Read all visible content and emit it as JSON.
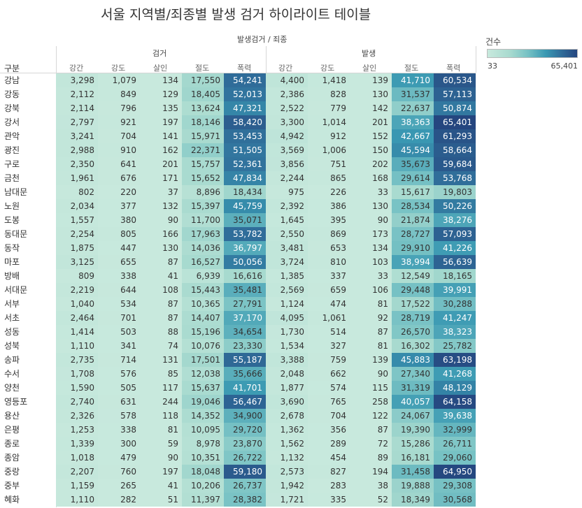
{
  "title": "서울 지역별/죄종별 발생 검거 하이라이트 테이블",
  "header": {
    "column_group_title": "발생검거 / 죄종",
    "row_header": "구분",
    "groups": [
      "검거",
      "발생"
    ],
    "crimes": [
      "강간",
      "강도",
      "살인",
      "절도",
      "폭력"
    ]
  },
  "legend": {
    "title": "건수",
    "min_label": "33",
    "max_label": "65,401",
    "color_low": "#c8e9dd",
    "color_high": "#25467f"
  },
  "chart_data": {
    "type": "heatmap",
    "title": "서울 지역별/죄종별 발생 검거 하이라이트 테이블",
    "row_header": "구분",
    "column_groups": [
      "검거",
      "발생"
    ],
    "crime_types": [
      "강간",
      "강도",
      "살인",
      "절도",
      "폭력"
    ],
    "color_range": [
      33,
      65401
    ],
    "rows": [
      {
        "region": "강남",
        "values": [
          3298,
          1079,
          134,
          17550,
          54241,
          4400,
          1418,
          139,
          41710,
          60534
        ]
      },
      {
        "region": "강동",
        "values": [
          2112,
          849,
          129,
          18405,
          52013,
          2386,
          828,
          130,
          31537,
          57113
        ]
      },
      {
        "region": "강북",
        "values": [
          2114,
          796,
          135,
          13624,
          47321,
          2522,
          779,
          142,
          22637,
          50874
        ]
      },
      {
        "region": "강서",
        "values": [
          2797,
          921,
          197,
          18146,
          58420,
          3300,
          1014,
          201,
          38363,
          65401
        ]
      },
      {
        "region": "관악",
        "values": [
          3241,
          704,
          141,
          15971,
          53453,
          4942,
          912,
          152,
          42667,
          61293
        ]
      },
      {
        "region": "광진",
        "values": [
          2988,
          910,
          162,
          22371,
          51505,
          3569,
          1006,
          150,
          45594,
          58664
        ]
      },
      {
        "region": "구로",
        "values": [
          2350,
          641,
          201,
          15757,
          52361,
          3856,
          751,
          202,
          35673,
          59684
        ]
      },
      {
        "region": "금천",
        "values": [
          1961,
          676,
          171,
          15652,
          47834,
          2244,
          865,
          168,
          29614,
          53768
        ]
      },
      {
        "region": "남대문",
        "values": [
          802,
          220,
          37,
          8896,
          18434,
          975,
          226,
          33,
          15617,
          19803
        ]
      },
      {
        "region": "노원",
        "values": [
          2034,
          377,
          132,
          15397,
          45759,
          2392,
          386,
          130,
          28534,
          50226
        ]
      },
      {
        "region": "도봉",
        "values": [
          1557,
          380,
          90,
          11700,
          35071,
          1645,
          395,
          90,
          21874,
          38276
        ]
      },
      {
        "region": "동대문",
        "values": [
          2254,
          805,
          166,
          17963,
          53782,
          2550,
          869,
          173,
          28727,
          57093
        ]
      },
      {
        "region": "동작",
        "values": [
          1875,
          447,
          130,
          14036,
          36797,
          3481,
          653,
          134,
          29910,
          41226
        ]
      },
      {
        "region": "마포",
        "values": [
          3125,
          655,
          87,
          16527,
          50056,
          3724,
          810,
          103,
          38994,
          56639
        ]
      },
      {
        "region": "방배",
        "values": [
          809,
          338,
          41,
          6939,
          16616,
          1385,
          337,
          33,
          12549,
          18165
        ]
      },
      {
        "region": "서대문",
        "values": [
          2219,
          644,
          108,
          15443,
          35481,
          2569,
          659,
          106,
          29448,
          39991
        ]
      },
      {
        "region": "서부",
        "values": [
          1040,
          534,
          87,
          10365,
          27791,
          1124,
          474,
          81,
          17522,
          30288
        ]
      },
      {
        "region": "서초",
        "values": [
          2464,
          701,
          87,
          14407,
          37170,
          4095,
          1061,
          92,
          28719,
          41247
        ]
      },
      {
        "region": "성동",
        "values": [
          1414,
          503,
          88,
          15196,
          34654,
          1730,
          514,
          87,
          26570,
          38323
        ]
      },
      {
        "region": "성북",
        "values": [
          1110,
          341,
          74,
          10076,
          23330,
          1534,
          327,
          81,
          16302,
          25782
        ]
      },
      {
        "region": "송파",
        "values": [
          2735,
          714,
          131,
          17501,
          55187,
          3388,
          759,
          139,
          45883,
          63198
        ]
      },
      {
        "region": "수서",
        "values": [
          1708,
          576,
          85,
          12038,
          35666,
          2048,
          662,
          90,
          27340,
          41268
        ]
      },
      {
        "region": "양천",
        "values": [
          1590,
          505,
          117,
          15637,
          41701,
          1877,
          574,
          115,
          31319,
          48129
        ]
      },
      {
        "region": "영등포",
        "values": [
          2740,
          631,
          244,
          19046,
          56467,
          3690,
          765,
          258,
          40057,
          64158
        ]
      },
      {
        "region": "용산",
        "values": [
          2326,
          578,
          118,
          14352,
          34900,
          2678,
          704,
          122,
          24067,
          39638
        ]
      },
      {
        "region": "은평",
        "values": [
          1253,
          338,
          81,
          10095,
          29720,
          1362,
          356,
          87,
          19390,
          32999
        ]
      },
      {
        "region": "종로",
        "values": [
          1339,
          300,
          59,
          8978,
          23870,
          1562,
          289,
          72,
          15286,
          26711
        ]
      },
      {
        "region": "종암",
        "values": [
          1018,
          479,
          90,
          10351,
          26722,
          1132,
          454,
          89,
          16181,
          29060
        ]
      },
      {
        "region": "중랑",
        "values": [
          2207,
          760,
          197,
          18048,
          59180,
          2573,
          827,
          194,
          31458,
          64950
        ]
      },
      {
        "region": "중부",
        "values": [
          1159,
          265,
          41,
          10206,
          26737,
          1942,
          283,
          38,
          19888,
          29308
        ]
      },
      {
        "region": "혜화",
        "values": [
          1110,
          282,
          51,
          11397,
          28382,
          1721,
          335,
          52,
          18349,
          30568
        ]
      }
    ]
  }
}
